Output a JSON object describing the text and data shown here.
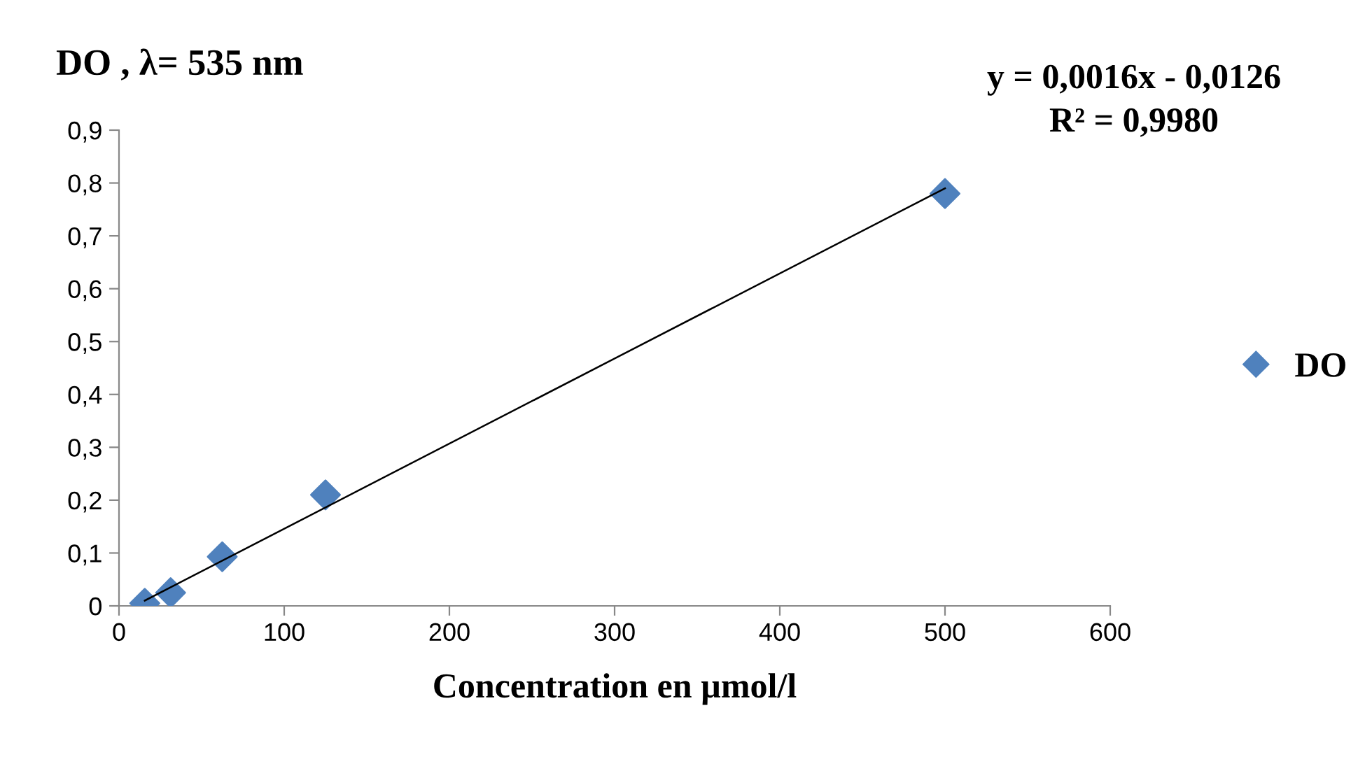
{
  "chart_data": {
    "type": "scatter",
    "title": "DO , λ= 535 nm",
    "xlabel": "Concentration en µmol/l",
    "annotations": [
      "y = 0,0016x - 0,0126",
      "R² = 0,9980"
    ],
    "series": [
      {
        "name": "DO",
        "color": "#4f81bd",
        "x": [
          15.6,
          31.25,
          62.5,
          125,
          500
        ],
        "values": [
          0.005,
          0.025,
          0.093,
          0.21,
          0.78
        ],
        "marker": "diamond"
      },
      {
        "type": "line",
        "color": "#000000",
        "x": [
          15.6,
          500
        ],
        "values": [
          0.01,
          0.79
        ],
        "marker": "none"
      }
    ],
    "xlim": [
      0,
      600
    ],
    "xticks": [
      0,
      100,
      200,
      300,
      400,
      500,
      600
    ],
    "ylim": [
      0,
      0.9
    ],
    "yticks": [
      {
        "value": 0,
        "label": "0"
      },
      {
        "value": 0.1,
        "label": "0,1"
      },
      {
        "value": 0.2,
        "label": "0,2"
      },
      {
        "value": 0.3,
        "label": "0,3"
      },
      {
        "value": 0.4,
        "label": "0,4"
      },
      {
        "value": 0.5,
        "label": "0,5"
      },
      {
        "value": 0.6,
        "label": "0,6"
      },
      {
        "value": 0.7,
        "label": "0,7"
      },
      {
        "value": 0.8,
        "label": "0,8"
      },
      {
        "value": 0.9,
        "label": "0,9"
      }
    ],
    "grid": false,
    "legend": "right"
  }
}
